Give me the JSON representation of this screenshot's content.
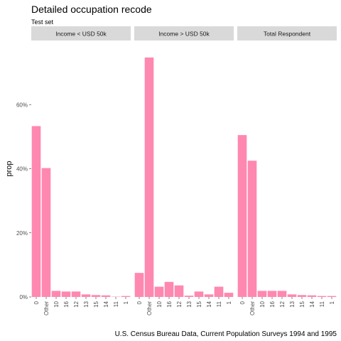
{
  "header": {
    "title": "Detailed occupation recode",
    "subtitle": "Test set"
  },
  "caption": "U.S. Census Bureau Data, Current Population Surveys 1994 and 1995",
  "colors": {
    "bar": "#ff88b0",
    "strip_bg": "#d9d9d9",
    "panel_bg": "#ffffff"
  },
  "chart_data": {
    "type": "bar",
    "xlabel": "",
    "ylabel": "prop",
    "ylim": [
      0,
      0.8
    ],
    "yticks": [
      0,
      0.2,
      0.4,
      0.6
    ],
    "ytick_labels": [
      "0%",
      "20%",
      "40%",
      "60%"
    ],
    "grid": false,
    "categories": [
      "0",
      "Other",
      "10",
      "16",
      "12",
      "13",
      "15",
      "14",
      "11",
      "1"
    ],
    "panels": [
      {
        "name": "Income < USD 50k",
        "values": [
          0.533,
          0.402,
          0.019,
          0.017,
          0.017,
          0.008,
          0.006,
          0.005,
          0.001,
          0.003
        ]
      },
      {
        "name": "Income > USD 50k",
        "values": [
          0.075,
          0.747,
          0.032,
          0.047,
          0.036,
          0.004,
          0.017,
          0.008,
          0.032,
          0.013
        ]
      },
      {
        "name": "Total Respondent",
        "values": [
          0.505,
          0.425,
          0.019,
          0.019,
          0.019,
          0.008,
          0.006,
          0.005,
          0.003,
          0.003
        ]
      }
    ]
  }
}
